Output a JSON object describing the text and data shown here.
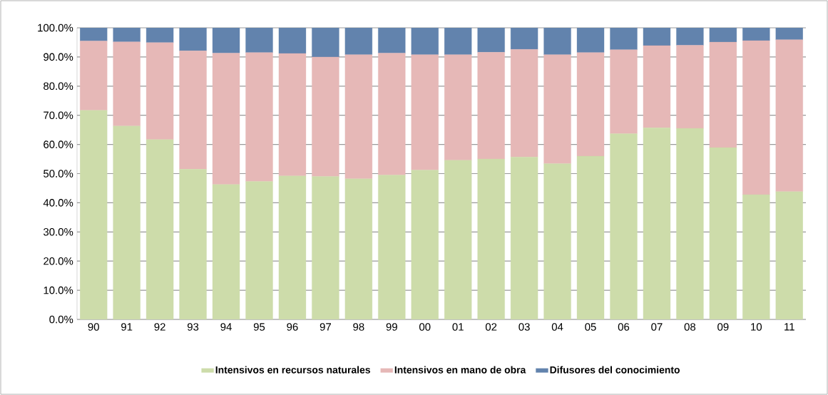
{
  "chart_data": {
    "type": "bar",
    "stacked": true,
    "categories": [
      "90",
      "91",
      "92",
      "93",
      "94",
      "95",
      "96",
      "97",
      "98",
      "99",
      "00",
      "01",
      "02",
      "03",
      "04",
      "05",
      "06",
      "07",
      "08",
      "09",
      "10",
      "11"
    ],
    "series": [
      {
        "name": "Intensivos en recursos naturales",
        "color": "#cddcaa",
        "values": [
          71.7,
          66.3,
          61.7,
          51.5,
          46.3,
          47.3,
          49.2,
          49.0,
          48.2,
          49.5,
          51.2,
          54.6,
          55.0,
          55.7,
          53.4,
          56.0,
          63.7,
          65.7,
          65.5,
          58.9,
          42.8,
          43.8
        ]
      },
      {
        "name": "Intensivos en mano de obra",
        "color": "#e6b8b7",
        "values": [
          23.8,
          28.9,
          33.2,
          40.6,
          45.0,
          44.2,
          42.0,
          41.0,
          42.6,
          41.8,
          39.6,
          36.2,
          36.6,
          36.9,
          37.4,
          35.5,
          28.8,
          28.2,
          28.5,
          36.2,
          52.8,
          52.1
        ]
      },
      {
        "name": "Difusores del conocimiento",
        "color": "#6283ad",
        "values": [
          4.5,
          4.8,
          5.1,
          7.9,
          8.7,
          8.5,
          8.8,
          10.0,
          9.2,
          8.7,
          9.2,
          9.2,
          8.4,
          7.4,
          9.2,
          8.5,
          7.5,
          6.1,
          6.0,
          4.9,
          4.4,
          4.1
        ]
      }
    ],
    "ylim": [
      0,
      100
    ],
    "yticks": [
      {
        "value": 0,
        "label": "0.0%"
      },
      {
        "value": 10,
        "label": "10.0%"
      },
      {
        "value": 20,
        "label": "20.0%"
      },
      {
        "value": 30,
        "label": "30.0%"
      },
      {
        "value": 40,
        "label": "40.0%"
      },
      {
        "value": 50,
        "label": "50.0%"
      },
      {
        "value": 60,
        "label": "60.0%"
      },
      {
        "value": 70,
        "label": "70.0%"
      },
      {
        "value": 80,
        "label": "80.0%"
      },
      {
        "value": 90,
        "label": "90.0%"
      },
      {
        "value": 100,
        "label": "100.0%"
      }
    ],
    "grid": "y",
    "legend": "bottom"
  }
}
